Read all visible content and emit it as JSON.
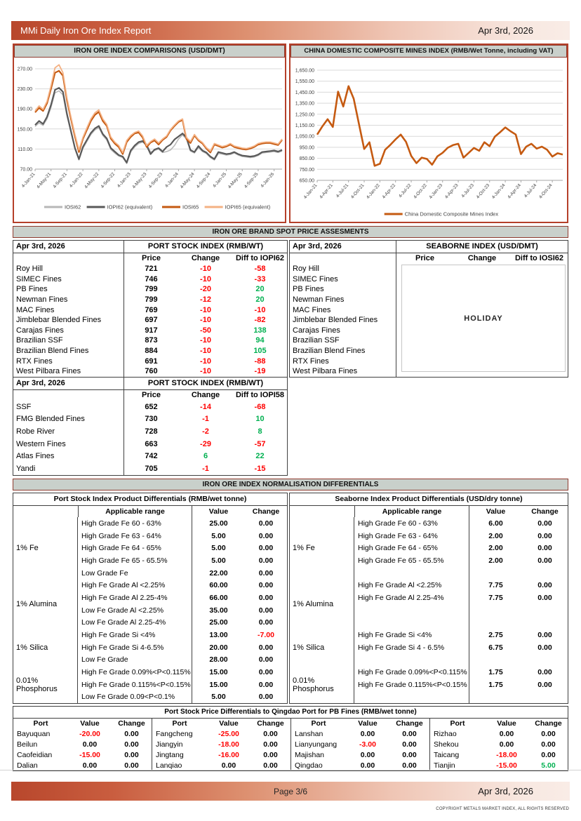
{
  "header": {
    "title": "MMi Daily Iron Ore Index Report",
    "date": "Apr 3rd, 2026"
  },
  "sections": {
    "spot": "IRON ORE BRAND SPOT PRICE ASSESMENTS",
    "normalisation": "IRON ORE INDEX NORMALISATION DIFFERENTIALS"
  },
  "chart_data": [
    {
      "type": "line",
      "title": "IRON ORE INDEX COMPARISONS (USD/DMT)",
      "ylim": [
        70,
        270
      ],
      "y_ticks": [
        "70.00",
        "110.00",
        "150.00",
        "190.00",
        "230.00",
        "270.00"
      ],
      "x_labels": [
        "4-Jan-21",
        "4-May-21",
        "4-Sep-21",
        "4-Jan-22",
        "4-May-22",
        "4-Sep-22",
        "4-Jan-23",
        "4-May-23",
        "4-Sep-23",
        "4-Jan-24",
        "4-May-24",
        "4-Sep-24",
        "4-Jan-25",
        "4-May-25",
        "4-Sep-25",
        "4-Jan-26"
      ],
      "x_label_step": 4,
      "x_total": 62,
      "legend_position": "bottom",
      "grid": true,
      "series": [
        {
          "name": "IOSI62",
          "color": "#b7b7b7",
          "width": 1.5,
          "values": [
            155,
            162,
            157,
            170,
            193,
            222,
            226,
            218,
            176,
            143,
            110,
            88,
            111,
            125,
            139,
            148,
            153,
            137,
            128,
            109,
            102,
            96,
            93,
            81,
            104,
            114,
            121,
            124,
            120,
            104,
            107,
            110,
            103,
            105,
            108,
            117,
            130,
            138,
            130,
            106,
            102,
            113,
            105,
            101,
            93,
            88,
            101,
            100,
            98,
            99,
            102,
            98,
            95,
            94,
            93,
            94,
            97,
            102,
            103,
            104,
            105,
            103,
            106
          ]
        },
        {
          "name": "IOPI62 (equivalent)",
          "color": "#595959",
          "width": 2.2,
          "values": [
            158,
            166,
            160,
            174,
            198,
            228,
            232,
            224,
            180,
            146,
            112,
            90,
            114,
            128,
            142,
            151,
            156,
            140,
            131,
            112,
            105,
            98,
            95,
            83,
            107,
            117,
            124,
            126,
            117,
            100,
            109,
            112,
            105,
            114,
            119,
            129,
            135,
            141,
            133,
            108,
            104,
            116,
            107,
            103,
            95,
            90,
            104,
            102,
            100,
            101,
            104,
            100,
            97,
            96,
            95,
            96,
            99,
            104,
            105,
            106,
            107,
            105,
            108
          ]
        },
        {
          "name": "IOSI65",
          "color": "#c55a11",
          "width": 2.2,
          "values": [
            183,
            192,
            186,
            201,
            230,
            262,
            266,
            256,
            207,
            170,
            135,
            104,
            130,
            148,
            166,
            178,
            184,
            166,
            156,
            131,
            121,
            114,
            100,
            124,
            134,
            141,
            143,
            133,
            114,
            123,
            127,
            119,
            128,
            134,
            147,
            156,
            164,
            168,
            130,
            122,
            137,
            127,
            121,
            111,
            103,
            119,
            116,
            113,
            115,
            119,
            114,
            112,
            110,
            109,
            111,
            114,
            119,
            121,
            122,
            122,
            120,
            118,
            128
          ]
        },
        {
          "name": "IOPI65 (equivalent)",
          "color": "#f4b183",
          "width": 1.8,
          "values": [
            186,
            196,
            189,
            205,
            236,
            272,
            278,
            262,
            212,
            174,
            139,
            108,
            133,
            152,
            170,
            182,
            188,
            170,
            159,
            134,
            124,
            117,
            103,
            127,
            137,
            143,
            146,
            136,
            117,
            125,
            130,
            122,
            130,
            136,
            149,
            158,
            166,
            170,
            133,
            125,
            139,
            129,
            123,
            113,
            106,
            121,
            118,
            115,
            117,
            121,
            116,
            114,
            112,
            111,
            113,
            116,
            121,
            123,
            124,
            124,
            122,
            120,
            130
          ]
        }
      ]
    },
    {
      "type": "line",
      "title": "CHINA DOMESTIC COMPOSITE MINES INDEX (RMB/Wet Tonne, including VAT)",
      "ylim": [
        650,
        1650
      ],
      "y_ticks": [
        "650.00",
        "750.00",
        "850.00",
        "950.00",
        "1,050.00",
        "1,150.00",
        "1,250.00",
        "1,350.00",
        "1,450.00",
        "1,550.00",
        "1,650.00"
      ],
      "x_labels": [
        "4-Jan-21",
        "4-Apr-21",
        "4-Jul-21",
        "4-Oct-21",
        "4-Jan-22",
        "4-Apr-22",
        "4-Jul-22",
        "4-Oct-22",
        "4-Jan-23",
        "4-Apr-23",
        "4-Jul-23",
        "4-Oct-23",
        "4-Jan-24",
        "4-Apr-24",
        "4-Jul-24",
        "4-Oct-24"
      ],
      "x_label_step": 3,
      "x_total": 47,
      "legend_position": "bottom",
      "grid": true,
      "series": [
        {
          "name": "China Domestic Composite Mines Index",
          "color": "#c55a11",
          "width": 2.6,
          "values": [
            1065,
            1140,
            1205,
            1135,
            1455,
            1320,
            1505,
            1390,
            1160,
            935,
            995,
            782,
            800,
            928,
            972,
            1022,
            1065,
            1000,
            872,
            806,
            856,
            844,
            792,
            868,
            900,
            946,
            970,
            982,
            856,
            900,
            944,
            918,
            996,
            960,
            1046,
            1086,
            1130,
            1096,
            1066,
            888,
            956,
            982,
            938,
            956,
            928,
            866,
            896,
            884
          ]
        }
      ]
    }
  ],
  "port_table1": {
    "date": "Apr 3rd, 2026",
    "group_header": "PORT STOCK INDEX (RMB/WT)",
    "columns": [
      "Price",
      "Change",
      "Diff to IOPI62"
    ],
    "rows": [
      {
        "name": "Roy Hill",
        "price": "721",
        "change": "-10",
        "diff": "-58"
      },
      {
        "name": "SIMEC Fines",
        "price": "746",
        "change": "-10",
        "diff": "-33"
      },
      {
        "name": "PB Fines",
        "price": "799",
        "change": "-20",
        "diff": "20"
      },
      {
        "name": "Newman Fines",
        "price": "799",
        "change": "-12",
        "diff": "20"
      },
      {
        "name": "MAC Fines",
        "price": "769",
        "change": "-10",
        "diff": "-10"
      },
      {
        "name": "Jimblebar Blended Fines",
        "price": "697",
        "change": "-10",
        "diff": "-82"
      },
      {
        "name": "Carajas Fines",
        "price": "917",
        "change": "-50",
        "diff": "138"
      },
      {
        "name": "Brazilian SSF",
        "price": "873",
        "change": "-10",
        "diff": "94"
      },
      {
        "name": "Brazilian Blend Fines",
        "price": "884",
        "change": "-10",
        "diff": "105"
      },
      {
        "name": "RTX Fines",
        "price": "691",
        "change": "-10",
        "diff": "-88"
      },
      {
        "name": "West Pilbara Fines",
        "price": "760",
        "change": "-10",
        "diff": "-19"
      }
    ]
  },
  "seaborne_table": {
    "date": "Apr 3rd, 2026",
    "group_header": "SEABORNE INDEX (USD/DMT)",
    "columns": [
      "Price",
      "Change",
      "Diff to IOSI62"
    ],
    "overlay": "HOLIDAY",
    "rows": [
      {
        "name": "Roy Hill"
      },
      {
        "name": "SIMEC Fines"
      },
      {
        "name": "PB Fines"
      },
      {
        "name": "Newman Fines"
      },
      {
        "name": "MAC Fines"
      },
      {
        "name": "Jimblebar Blended Fines"
      },
      {
        "name": "Carajas Fines"
      },
      {
        "name": "Brazilian SSF"
      },
      {
        "name": "Brazilian Blend Fines"
      },
      {
        "name": "RTX Fines"
      },
      {
        "name": "West Pilbara Fines"
      }
    ]
  },
  "port_table2": {
    "date": "Apr 3rd, 2026",
    "group_header": "PORT STOCK INDEX (RMB/WT)",
    "columns": [
      "Price",
      "Change",
      "Diff to IOPI58"
    ],
    "rows": [
      {
        "name": "SSF",
        "price": "652",
        "change": "-14",
        "diff": "-68"
      },
      {
        "name": "FMG Blended Fines",
        "price": "730",
        "change": "-1",
        "diff": "10"
      },
      {
        "name": "Robe River",
        "price": "728",
        "change": "-2",
        "diff": "8"
      },
      {
        "name": "Western Fines",
        "price": "663",
        "change": "-29",
        "diff": "-57"
      },
      {
        "name": "Atlas Fines",
        "price": "742",
        "change": "6",
        "diff": "22"
      },
      {
        "name": "Yandi",
        "price": "705",
        "change": "-1",
        "diff": "-15"
      }
    ]
  },
  "diff_left": {
    "title": "Port Stock Index Product Differentials (RMB/wet tonne)",
    "col_headers": {
      "range": "Applicable range",
      "value": "Value",
      "change": "Change"
    },
    "groups": [
      {
        "label": "1% Fe",
        "rows": 5
      },
      {
        "label": "1% Alumina",
        "rows": 4
      },
      {
        "label": "1% Silica",
        "rows": 3
      },
      {
        "label": "0.01% Phosphorus",
        "rows": 3
      }
    ],
    "rows": [
      {
        "range": "High Grade Fe 60 - 63%",
        "value": "25.00",
        "change": "0.00"
      },
      {
        "range": "High Grade Fe 63 - 64%",
        "value": "5.00",
        "change": "0.00"
      },
      {
        "range": "High Grade Fe 64 - 65%",
        "value": "5.00",
        "change": "0.00"
      },
      {
        "range": "High Grade Fe 65 - 65.5%",
        "value": "5.00",
        "change": "0.00"
      },
      {
        "range": "Low Grade Fe",
        "value": "22.00",
        "change": "0.00"
      },
      {
        "range": "High Fe Grade Al <2.25%",
        "value": "60.00",
        "change": "0.00"
      },
      {
        "range": "High Fe Grade Al 2.25-4%",
        "value": "66.00",
        "change": "0.00"
      },
      {
        "range": "Low Fe Grade Al <2.25%",
        "value": "35.00",
        "change": "0.00"
      },
      {
        "range": "Low Fe Grade Al 2.25-4%",
        "value": "25.00",
        "change": "0.00"
      },
      {
        "range": "High Fe Grade Si <4%",
        "value": "13.00",
        "change": "-7.00"
      },
      {
        "range": "High Fe Grade Si 4-6.5%",
        "value": "20.00",
        "change": "0.00"
      },
      {
        "range": "Low Fe Grade",
        "value": "28.00",
        "change": "0.00"
      },
      {
        "range": "High Fe Grade 0.09%<P<0.115%",
        "value": "15.00",
        "change": "0.00"
      },
      {
        "range": "High Fe Grade 0.115%<P<0.15%",
        "value": "15.00",
        "change": "0.00"
      },
      {
        "range": "Low Fe Grade 0.09<P<0.1%",
        "value": "5.00",
        "change": "0.00"
      }
    ]
  },
  "diff_right": {
    "title": "Seaborne Index Product Differentials (USD/dry tonne)",
    "col_headers": {
      "range": "Applicable range",
      "value": "Value",
      "change": "Change"
    },
    "groups": [
      {
        "label": "1% Fe",
        "rows": 5
      },
      {
        "label": "1% Alumina",
        "rows": 4
      },
      {
        "label": "1% Silica",
        "rows": 3
      },
      {
        "label": "0.01% Phosphorus",
        "rows": 3
      }
    ],
    "rows": [
      {
        "range": "High Grade Fe 60 - 63%",
        "value": "6.00",
        "change": "0.00"
      },
      {
        "range": "High Grade Fe 63 - 64%",
        "value": "2.00",
        "change": "0.00"
      },
      {
        "range": "High Grade Fe 64 - 65%",
        "value": "2.00",
        "change": "0.00"
      },
      {
        "range": "High Grade Fe 65 - 65.5%",
        "value": "2.00",
        "change": "0.00"
      },
      {
        "range": "",
        "value": "",
        "change": ""
      },
      {
        "range": "High Fe Grade Al <2.25%",
        "value": "7.75",
        "change": "0.00"
      },
      {
        "range": "High Fe Grade Al 2.25-4%",
        "value": "7.75",
        "change": "0.00"
      },
      {
        "range": "",
        "value": "",
        "change": ""
      },
      {
        "range": "",
        "value": "",
        "change": ""
      },
      {
        "range": "High Fe Grade Si <4%",
        "value": "2.75",
        "change": "0.00"
      },
      {
        "range": "High Fe Grade Si 4 - 6.5%",
        "value": "6.75",
        "change": "0.00"
      },
      {
        "range": "",
        "value": "",
        "change": ""
      },
      {
        "range": "High Fe Grade 0.09%<P<0.115%",
        "value": "1.75",
        "change": "0.00"
      },
      {
        "range": "High Fe Grade 0.115%<P<0.15%",
        "value": "1.75",
        "change": "0.00"
      },
      {
        "range": "",
        "value": "",
        "change": ""
      }
    ]
  },
  "ports_table": {
    "title": "Port Stock Price Differentials to Qingdao Port for PB Fines (RMB/wet tonne)",
    "groups": [
      {
        "col_port": "Port",
        "col_value": "Value",
        "col_change": "Change",
        "rows": [
          {
            "port": "Bayuquan",
            "value": "-20.00",
            "change": "0.00"
          },
          {
            "port": "Beilun",
            "value": "0.00",
            "change": "0.00"
          },
          {
            "port": "Caofeidian",
            "value": "-15.00",
            "change": "0.00"
          },
          {
            "port": "Dalian",
            "value": "0.00",
            "change": "0.00"
          }
        ]
      },
      {
        "col_port": "Port",
        "col_value": "Value",
        "col_change": "Change",
        "rows": [
          {
            "port": "Fangcheng",
            "value": "-25.00",
            "change": "0.00"
          },
          {
            "port": "Jiangyin",
            "value": "-18.00",
            "change": "0.00"
          },
          {
            "port": "Jingtang",
            "value": "-16.00",
            "change": "0.00"
          },
          {
            "port": "Lanqiao",
            "value": "0.00",
            "change": "0.00"
          }
        ]
      },
      {
        "col_port": "Port",
        "col_value": "Value",
        "col_change": "Change",
        "rows": [
          {
            "port": "Lanshan",
            "value": "0.00",
            "change": "0.00"
          },
          {
            "port": "Lianyungang",
            "value": "-3.00",
            "change": "0.00"
          },
          {
            "port": "Majishan",
            "value": "0.00",
            "change": "0.00"
          },
          {
            "port": "Qingdao",
            "value": "0.00",
            "change": "0.00"
          }
        ]
      },
      {
        "col_port": "Port",
        "col_value": "Value",
        "col_change": "Change",
        "rows": [
          {
            "port": "Rizhao",
            "value": "0.00",
            "change": "0.00"
          },
          {
            "port": "Shekou",
            "value": "0.00",
            "change": "0.00"
          },
          {
            "port": "Taicang",
            "value": "-18.00",
            "change": "0.00"
          },
          {
            "port": "Tianjin",
            "value": "-15.00",
            "change": "5.00"
          }
        ]
      }
    ]
  },
  "footer": {
    "page": "Page 3/6",
    "date": "Apr 3rd, 2026",
    "copyright": "COPYRIGHT METALS MARKET INDEX, ALL RIGHTS RESERVED"
  }
}
